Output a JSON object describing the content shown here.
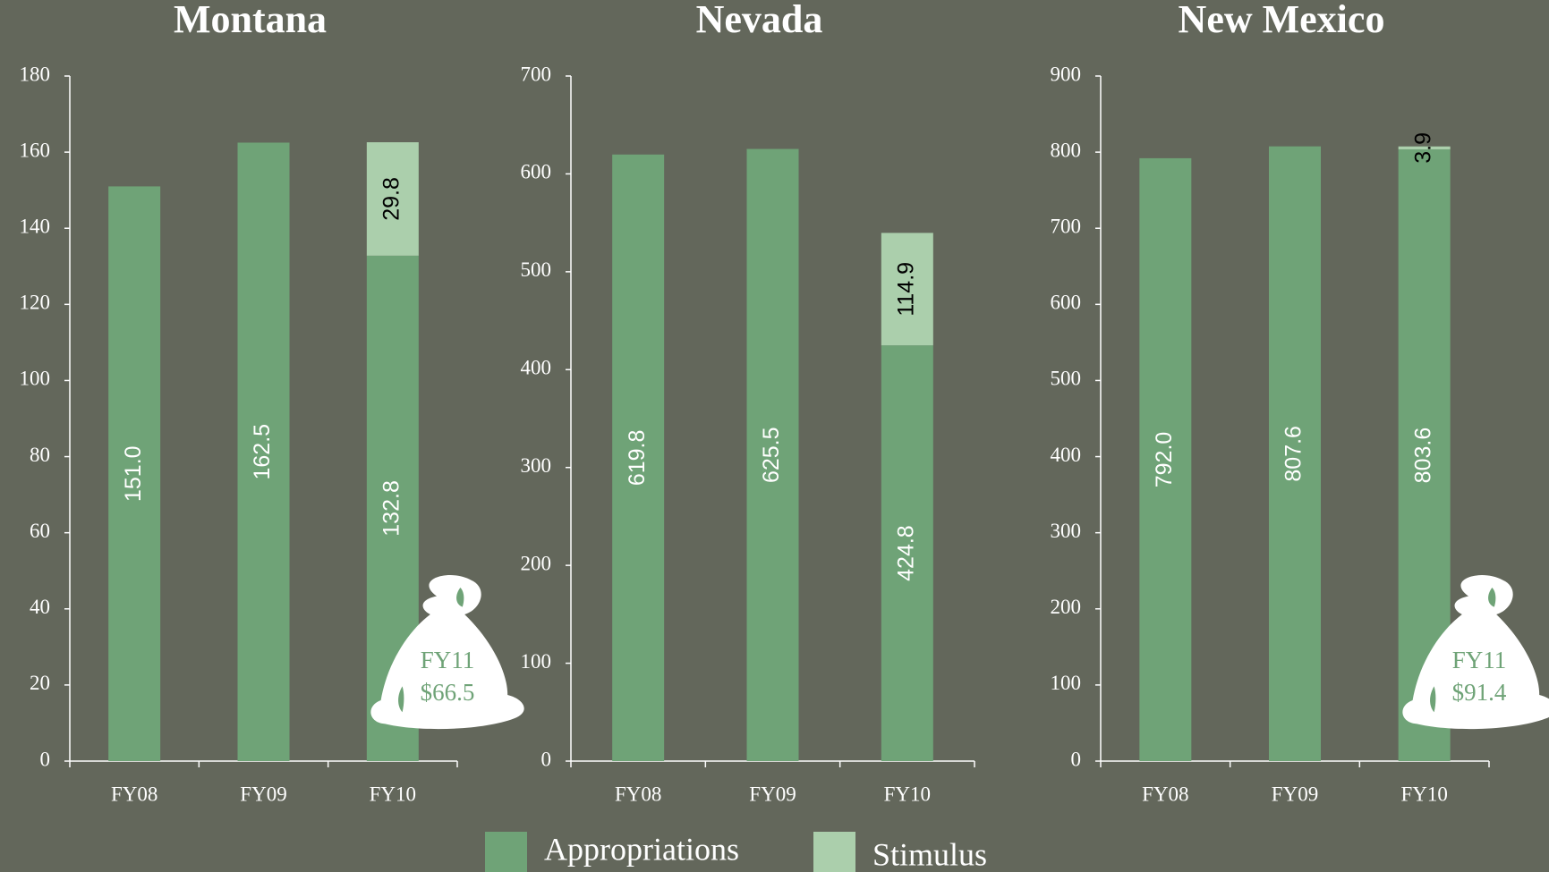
{
  "chart_data": [
    {
      "type": "bar",
      "stacked": true,
      "title": "Montana",
      "categories": [
        "FY08",
        "FY09",
        "FY10"
      ],
      "series": [
        {
          "name": "Appropriations",
          "color": "#6fa377",
          "values": [
            151.0,
            162.5,
            132.8
          ],
          "value_labels": [
            "151.0",
            "162.5",
            "132.8"
          ]
        },
        {
          "name": "Stimulus",
          "color": "#abcfac",
          "values": [
            null,
            null,
            29.8
          ],
          "value_labels": [
            null,
            null,
            "29.8"
          ]
        }
      ],
      "ylim": [
        0,
        180
      ],
      "yticks": [
        0,
        20,
        40,
        60,
        80,
        100,
        120,
        140,
        160,
        180
      ],
      "annotations": [
        "FY11",
        "$66.5"
      ],
      "legend": "bottom"
    },
    {
      "type": "bar",
      "stacked": true,
      "title": "Nevada",
      "categories": [
        "FY08",
        "FY09",
        "FY10"
      ],
      "series": [
        {
          "name": "Appropriations",
          "color": "#6fa377",
          "values": [
            619.8,
            625.5,
            424.8
          ],
          "value_labels": [
            "619.8",
            "625.5",
            "424.8"
          ]
        },
        {
          "name": "Stimulus",
          "color": "#abcfac",
          "values": [
            null,
            null,
            114.9
          ],
          "value_labels": [
            null,
            null,
            "114.9"
          ]
        }
      ],
      "ylim": [
        0,
        700
      ],
      "yticks": [
        0,
        100,
        200,
        300,
        400,
        500,
        600,
        700
      ]
    },
    {
      "type": "bar",
      "stacked": true,
      "title": "New Mexico",
      "categories": [
        "FY08",
        "FY09",
        "FY10"
      ],
      "series": [
        {
          "name": "Appropriations",
          "color": "#6fa377",
          "values": [
            792.0,
            807.6,
            803.6
          ],
          "value_labels": [
            "792.0",
            "807.6",
            "803.6"
          ]
        },
        {
          "name": "Stimulus",
          "color": "#abcfac",
          "values": [
            null,
            null,
            3.9
          ],
          "value_labels": [
            null,
            null,
            "3.9"
          ]
        }
      ],
      "ylim": [
        0,
        900
      ],
      "yticks": [
        0,
        100,
        200,
        300,
        400,
        500,
        600,
        700,
        800,
        900
      ],
      "annotations": [
        "FY11",
        "$91.4"
      ]
    }
  ]
}
